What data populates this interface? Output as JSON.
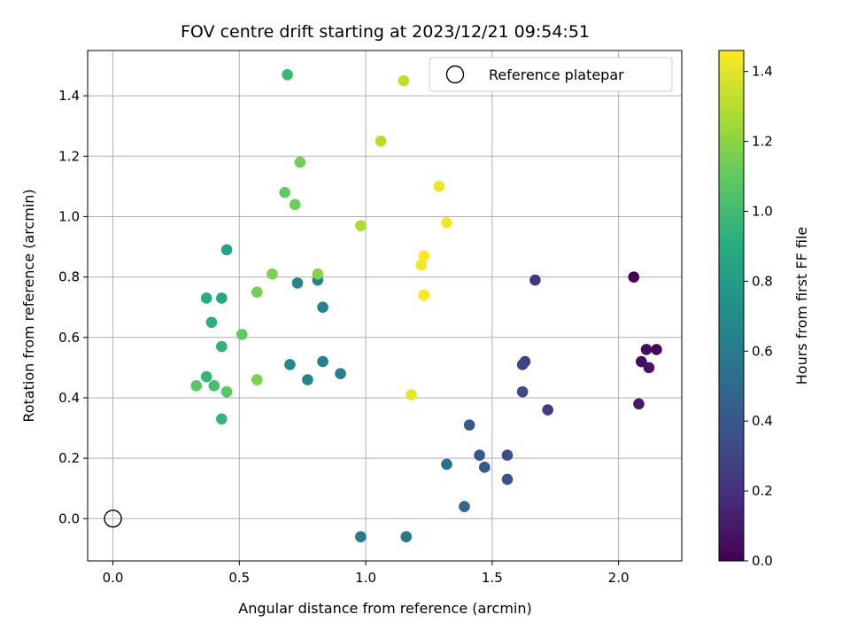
{
  "chart_data": {
    "type": "scatter",
    "title": "FOV centre drift starting at 2023/12/21 09:54:51",
    "xlabel": "Angular distance from reference (arcmin)",
    "ylabel": "Rotation from reference (arcmin)",
    "xlim": [
      -0.1,
      2.25
    ],
    "ylim": [
      -0.14,
      1.55
    ],
    "xticks": [
      0.0,
      0.5,
      1.0,
      1.5,
      2.0
    ],
    "xtick_labels": [
      "0.0",
      "0.5",
      "1.0",
      "1.5",
      "2.0"
    ],
    "yticks": [
      0.0,
      0.2,
      0.4,
      0.6,
      0.8,
      1.0,
      1.2,
      1.4
    ],
    "ytick_labels": [
      "0.0",
      "0.2",
      "0.4",
      "0.6",
      "0.8",
      "1.0",
      "1.2",
      "1.4"
    ],
    "grid": true,
    "legend": {
      "placement": "top-right",
      "entries": [
        "Reference platepar"
      ]
    },
    "reference_point": {
      "x": 0.0,
      "y": 0.0,
      "marker": "hollow-circle",
      "label": "Reference platepar"
    },
    "colormap": "viridis",
    "colorbar": {
      "label": "Hours from first FF file",
      "range": [
        0.0,
        1.46
      ],
      "ticks": [
        0.0,
        0.2,
        0.4,
        0.6,
        0.8,
        1.0,
        1.2,
        1.4
      ],
      "tick_labels": [
        "0.0",
        "0.2",
        "0.4",
        "0.6",
        "0.8",
        "1.0",
        "1.2",
        "1.4"
      ]
    },
    "points": [
      {
        "x": 2.06,
        "y": 0.8,
        "c": 0.0
      },
      {
        "x": 2.15,
        "y": 0.56,
        "c": 0.02
      },
      {
        "x": 2.11,
        "y": 0.56,
        "c": 0.04
      },
      {
        "x": 2.09,
        "y": 0.52,
        "c": 0.06
      },
      {
        "x": 2.12,
        "y": 0.5,
        "c": 0.08
      },
      {
        "x": 2.08,
        "y": 0.38,
        "c": 0.1
      },
      {
        "x": 1.67,
        "y": 0.79,
        "c": 0.22
      },
      {
        "x": 1.72,
        "y": 0.36,
        "c": 0.26
      },
      {
        "x": 1.63,
        "y": 0.52,
        "c": 0.28
      },
      {
        "x": 1.62,
        "y": 0.51,
        "c": 0.3
      },
      {
        "x": 1.62,
        "y": 0.42,
        "c": 0.32
      },
      {
        "x": 1.56,
        "y": 0.21,
        "c": 0.35
      },
      {
        "x": 1.56,
        "y": 0.13,
        "c": 0.37
      },
      {
        "x": 1.45,
        "y": 0.21,
        "c": 0.38
      },
      {
        "x": 1.47,
        "y": 0.17,
        "c": 0.4
      },
      {
        "x": 1.41,
        "y": 0.31,
        "c": 0.42
      },
      {
        "x": 1.39,
        "y": 0.04,
        "c": 0.48
      },
      {
        "x": 1.32,
        "y": 0.18,
        "c": 0.52
      },
      {
        "x": 1.16,
        "y": -0.06,
        "c": 0.58
      },
      {
        "x": 0.98,
        "y": -0.06,
        "c": 0.6
      },
      {
        "x": 0.9,
        "y": 0.48,
        "c": 0.62
      },
      {
        "x": 0.83,
        "y": 0.52,
        "c": 0.62
      },
      {
        "x": 0.83,
        "y": 0.7,
        "c": 0.64
      },
      {
        "x": 0.81,
        "y": 0.79,
        "c": 0.64
      },
      {
        "x": 0.73,
        "y": 0.78,
        "c": 0.66
      },
      {
        "x": 0.77,
        "y": 0.46,
        "c": 0.66
      },
      {
        "x": 0.7,
        "y": 0.51,
        "c": 0.68
      },
      {
        "x": 0.45,
        "y": 0.89,
        "c": 0.84
      },
      {
        "x": 0.43,
        "y": 0.73,
        "c": 0.86
      },
      {
        "x": 0.37,
        "y": 0.73,
        "c": 0.9
      },
      {
        "x": 0.39,
        "y": 0.65,
        "c": 0.92
      },
      {
        "x": 0.43,
        "y": 0.57,
        "c": 0.94
      },
      {
        "x": 0.37,
        "y": 0.47,
        "c": 0.96
      },
      {
        "x": 0.43,
        "y": 0.33,
        "c": 0.96
      },
      {
        "x": 0.45,
        "y": 0.42,
        "c": 1.0
      },
      {
        "x": 0.4,
        "y": 0.44,
        "c": 1.02
      },
      {
        "x": 0.69,
        "y": 1.47,
        "c": 0.98
      },
      {
        "x": 0.33,
        "y": 0.44,
        "c": 1.08
      },
      {
        "x": 0.45,
        "y": 0.42,
        "c": 1.08
      },
      {
        "x": 0.51,
        "y": 0.61,
        "c": 1.1
      },
      {
        "x": 0.68,
        "y": 1.08,
        "c": 1.1
      },
      {
        "x": 0.72,
        "y": 1.04,
        "c": 1.12
      },
      {
        "x": 0.74,
        "y": 1.18,
        "c": 1.14
      },
      {
        "x": 0.57,
        "y": 0.75,
        "c": 1.14
      },
      {
        "x": 0.63,
        "y": 0.81,
        "c": 1.16
      },
      {
        "x": 0.57,
        "y": 0.46,
        "c": 1.16
      },
      {
        "x": 0.81,
        "y": 0.81,
        "c": 1.18
      },
      {
        "x": 0.98,
        "y": 0.97,
        "c": 1.28
      },
      {
        "x": 1.06,
        "y": 1.25,
        "c": 1.3
      },
      {
        "x": 1.15,
        "y": 1.45,
        "c": 1.32
      },
      {
        "x": 1.23,
        "y": 0.74,
        "c": 1.38
      },
      {
        "x": 1.18,
        "y": 0.41,
        "c": 1.42
      },
      {
        "x": 1.29,
        "y": 1.1,
        "c": 1.42
      },
      {
        "x": 1.32,
        "y": 0.98,
        "c": 1.44
      },
      {
        "x": 1.22,
        "y": 0.84,
        "c": 1.44
      },
      {
        "x": 1.23,
        "y": 0.87,
        "c": 1.46
      },
      {
        "x": 1.23,
        "y": 0.74,
        "c": 1.46
      }
    ]
  }
}
